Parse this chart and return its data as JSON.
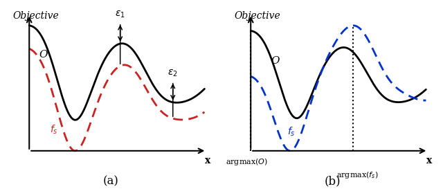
{
  "title": "Objective",
  "xlabel": "x",
  "label_O": "O",
  "label_fs_a": "$f_s$",
  "label_fs_b": "$f_s$",
  "eps1": "$\\epsilon_1$",
  "eps2": "$\\epsilon_2$",
  "caption_a": "(a)",
  "caption_b": "(b)",
  "solid_color": "#000000",
  "dashed_red": "#cc2222",
  "dashed_blue": "#0033cc",
  "bg": "#ffffff"
}
